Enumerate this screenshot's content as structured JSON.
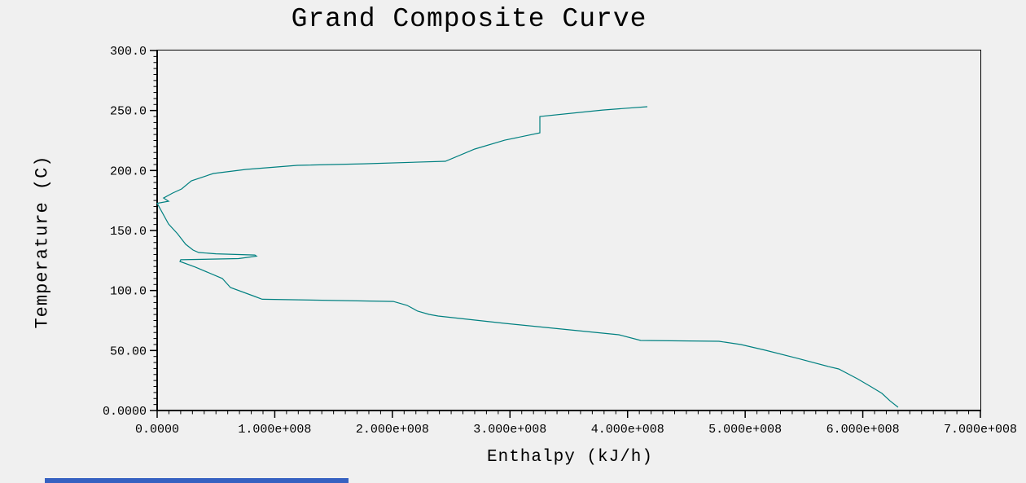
{
  "colors": {
    "background": "#f0f0f0",
    "axis": "#000000",
    "curve": "#008080",
    "text": "#000000",
    "bottom_strip": "#3661c1"
  },
  "chart_data": {
    "type": "line",
    "title": "Grand Composite Curve",
    "xlabel": "Enthalpy (kJ/h)",
    "ylabel": "Temperature (C)",
    "xlim": [
      0,
      700000000
    ],
    "ylim": [
      0,
      300
    ],
    "grid": false,
    "legend": null,
    "x_ticks": [
      {
        "value": 0,
        "label": "0.0000"
      },
      {
        "value": 100000000,
        "label": "1.000e+008"
      },
      {
        "value": 200000000,
        "label": "2.000e+008"
      },
      {
        "value": 300000000,
        "label": "3.000e+008"
      },
      {
        "value": 400000000,
        "label": "4.000e+008"
      },
      {
        "value": 500000000,
        "label": "5.000e+008"
      },
      {
        "value": 600000000,
        "label": "6.000e+008"
      },
      {
        "value": 700000000,
        "label": "7.000e+008"
      }
    ],
    "y_ticks": [
      {
        "value": 300,
        "label": "300.0"
      },
      {
        "value": 250,
        "label": "250.0"
      },
      {
        "value": 200,
        "label": "200.0"
      },
      {
        "value": 150,
        "label": "150.0"
      },
      {
        "value": 100,
        "label": "100.0"
      },
      {
        "value": 50,
        "label": "50.00"
      },
      {
        "value": 0,
        "label": "0.0000"
      }
    ],
    "x_minor_step": 10000000,
    "y_minor_step": 5,
    "series": [
      {
        "name": "Grand Composite Curve",
        "color": "#008080",
        "points": [
          [
            416800000.0,
            253.2
          ],
          [
            378700000.0,
            250.4
          ],
          [
            325400000.0,
            245.0
          ],
          [
            325400000.0,
            231.4
          ],
          [
            295600000.0,
            225.3
          ],
          [
            270000000.0,
            217.9
          ],
          [
            245100000.0,
            207.7
          ],
          [
            175800000.0,
            205.6
          ],
          [
            119100000.0,
            204.3
          ],
          [
            75500000.0,
            200.9
          ],
          [
            47800000.0,
            197.5
          ],
          [
            29100000.0,
            191.4
          ],
          [
            20800000.0,
            184.6
          ],
          [
            13200000.0,
            181.2
          ],
          [
            5500000.0,
            177.1
          ],
          [
            9700000.0,
            174.4
          ],
          [
            0.0,
            172.7
          ],
          [
            9700000.0,
            155.4
          ],
          [
            17300000.0,
            147.3
          ],
          [
            24200000.0,
            138.5
          ],
          [
            30500000.0,
            133.7
          ],
          [
            35300000.0,
            131.7
          ],
          [
            49900000.0,
            130.6
          ],
          [
            83100000.0,
            129.6
          ],
          [
            84500000.0,
            128.6
          ],
          [
            69200000.0,
            126.6
          ],
          [
            20100000.0,
            125.6
          ],
          [
            19400000.0,
            124.2
          ],
          [
            32500000.0,
            119.5
          ],
          [
            55400000.0,
            110.0
          ],
          [
            62300000.0,
            102.5
          ],
          [
            83100000.0,
            95.0
          ],
          [
            89300000.0,
            92.7
          ],
          [
            200800000.0,
            90.9
          ],
          [
            212500000.0,
            87.6
          ],
          [
            221500000.0,
            82.8
          ],
          [
            231200000.0,
            80.1
          ],
          [
            238900000.0,
            78.7
          ],
          [
            295600000.0,
            72.6
          ],
          [
            351000000.0,
            67.2
          ],
          [
            392600000.0,
            63.1
          ],
          [
            411200000.0,
            58.4
          ],
          [
            477700000.0,
            57.7
          ],
          [
            496400000.0,
            55.0
          ],
          [
            517200000.0,
            50.2
          ],
          [
            544800000.0,
            43.4
          ],
          [
            570500000.0,
            36.7
          ],
          [
            579500000.0,
            34.6
          ],
          [
            595400000.0,
            26.5
          ],
          [
            607200000.0,
            19.7
          ],
          [
            616200000.0,
            14.3
          ],
          [
            623100000.0,
            8.1
          ],
          [
            630000000.0,
            2.7
          ]
        ]
      }
    ]
  }
}
